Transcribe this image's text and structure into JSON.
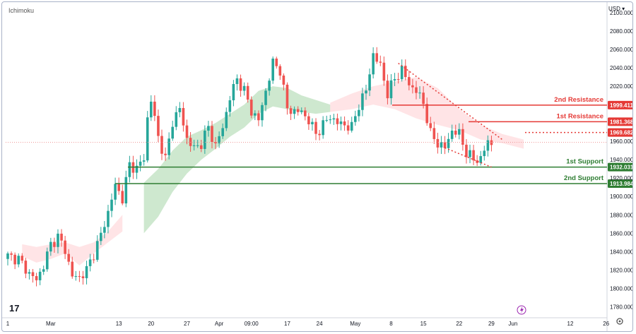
{
  "header": {
    "indicator": "Ichimoku",
    "currency": "USD ▾"
  },
  "watermark": "17",
  "icons": {
    "flash": "flash-icon",
    "settings": "gear-icon"
  },
  "colors": {
    "up": "#26a69a",
    "down": "#ef5350",
    "resistance": "#e53935",
    "support": "#2e7d32",
    "cloud_bull": "#a5d6a7",
    "cloud_bear": "#ffcdd2",
    "price_line": "#ef9a9a"
  },
  "chart_data": {
    "type": "candlestick",
    "ylim": [
      1768,
      2110
    ],
    "y_ticks": [
      {
        "value": 2100,
        "label": "2100.000"
      },
      {
        "value": 2080,
        "label": "2080.000"
      },
      {
        "value": 2060,
        "label": "2060.000"
      },
      {
        "value": 2040,
        "label": "2040.000"
      },
      {
        "value": 2020,
        "label": "2020.000"
      },
      {
        "value": 1960,
        "label": "1960.000"
      },
      {
        "value": 1940,
        "label": "1940.000"
      },
      {
        "value": 1920,
        "label": "1920.000"
      },
      {
        "value": 1900,
        "label": "1900.000"
      },
      {
        "value": 1880,
        "label": "1880.000"
      },
      {
        "value": 1860,
        "label": "1860.000"
      },
      {
        "value": 1840,
        "label": "1840.000"
      },
      {
        "value": 1820,
        "label": "1820.000"
      },
      {
        "value": 1800,
        "label": "1800.000"
      },
      {
        "value": 1780,
        "label": "1780.000"
      }
    ],
    "x_ticks": [
      {
        "pos": 0,
        "label": "1"
      },
      {
        "pos": 12,
        "label": "Mar"
      },
      {
        "pos": 31,
        "label": "13"
      },
      {
        "pos": 40,
        "label": "20"
      },
      {
        "pos": 50,
        "label": "27"
      },
      {
        "pos": 59,
        "label": "Apr"
      },
      {
        "pos": 68,
        "label": "09:00"
      },
      {
        "pos": 78,
        "label": "17"
      },
      {
        "pos": 87,
        "label": "24"
      },
      {
        "pos": 97,
        "label": "May"
      },
      {
        "pos": 107,
        "label": "8"
      },
      {
        "pos": 116,
        "label": "15"
      },
      {
        "pos": 126,
        "label": "22"
      },
      {
        "pos": 135,
        "label": "29"
      },
      {
        "pos": 141,
        "label": "Jun"
      },
      {
        "pos": 157,
        "label": "12"
      },
      {
        "pos": 167,
        "label": "26"
      }
    ],
    "ohlc_anchors": [
      [
        0,
        1835
      ],
      [
        3,
        1832
      ],
      [
        6,
        1816
      ],
      [
        8,
        1809
      ],
      [
        10,
        1825
      ],
      [
        12,
        1848
      ],
      [
        14,
        1856
      ],
      [
        16,
        1842
      ],
      [
        18,
        1813
      ],
      [
        20,
        1812
      ],
      [
        22,
        1820
      ],
      [
        24,
        1838
      ],
      [
        26,
        1858
      ],
      [
        28,
        1883
      ],
      [
        30,
        1912
      ],
      [
        32,
        1898
      ],
      [
        34,
        1935
      ],
      [
        36,
        1930
      ],
      [
        38,
        1942
      ],
      [
        39,
        1985
      ],
      [
        40,
        2005
      ],
      [
        42,
        1965
      ],
      [
        44,
        1940
      ],
      [
        46,
        1982
      ],
      [
        48,
        1995
      ],
      [
        50,
        1963
      ],
      [
        52,
        1952
      ],
      [
        54,
        1958
      ],
      [
        56,
        1975
      ],
      [
        58,
        1955
      ],
      [
        60,
        1975
      ],
      [
        62,
        2008
      ],
      [
        64,
        2028
      ],
      [
        66,
        2015
      ],
      [
        68,
        1993
      ],
      [
        70,
        1983
      ],
      [
        72,
        2015
      ],
      [
        74,
        2045
      ],
      [
        76,
        2038
      ],
      [
        78,
        1995
      ],
      [
        80,
        1993
      ],
      [
        82,
        1992
      ],
      [
        84,
        1983
      ],
      [
        86,
        1968
      ],
      [
        88,
        1978
      ],
      [
        90,
        1987
      ],
      [
        92,
        1980
      ],
      [
        94,
        1978
      ],
      [
        96,
        1975
      ],
      [
        98,
        2000
      ],
      [
        100,
        2015
      ],
      [
        102,
        2055
      ],
      [
        104,
        2042
      ],
      [
        106,
        2012
      ],
      [
        108,
        2028
      ],
      [
        110,
        2038
      ],
      [
        112,
        2022
      ],
      [
        114,
        2015
      ],
      [
        116,
        2002
      ],
      [
        118,
        1968
      ],
      [
        120,
        1958
      ],
      [
        122,
        1953
      ],
      [
        124,
        1972
      ],
      [
        126,
        1968
      ],
      [
        128,
        1948
      ],
      [
        130,
        1940
      ],
      [
        132,
        1941
      ],
      [
        134,
        1960
      ],
      [
        135,
        1957
      ]
    ],
    "levels": [
      {
        "name": "2nd Resistance",
        "value": 1999.411,
        "tag": "1999.411",
        "type": "resistance",
        "style": "solid"
      },
      {
        "name": "1st Resistance",
        "value": 1981.368,
        "tag": "1981.368",
        "type": "resistance",
        "style": "solid"
      },
      {
        "name": "",
        "value": 1969.682,
        "tag": "1969.682",
        "type": "resistance",
        "style": "dotted"
      },
      {
        "name": "1st Support",
        "value": 1932.031,
        "tag": "1932.031",
        "type": "support",
        "style": "solid"
      },
      {
        "name": "2nd Support",
        "value": 1913.984,
        "tag": "1913.984",
        "type": "support",
        "style": "solid"
      }
    ],
    "current_price": 1959,
    "channel": {
      "upper": [
        [
          109,
          2045
        ],
        [
          138,
          1962
        ]
      ],
      "lower": [
        [
          122,
          1953
        ],
        [
          135,
          1932
        ]
      ]
    },
    "cloud": {
      "bull": [
        [
          38,
          1860,
          1915
        ],
        [
          42,
          1878,
          1930
        ],
        [
          46,
          1905,
          1950
        ],
        [
          50,
          1925,
          1965
        ],
        [
          54,
          1940,
          1972
        ],
        [
          58,
          1952,
          1980
        ],
        [
          62,
          1965,
          1990
        ],
        [
          66,
          1975,
          2000
        ],
        [
          70,
          1990,
          2015
        ],
        [
          74,
          1998,
          2020
        ],
        [
          78,
          1995,
          2018
        ],
        [
          82,
          1992,
          2010
        ],
        [
          86,
          1990,
          2005
        ],
        [
          90,
          1992,
          2000
        ]
      ],
      "bear": [
        [
          4,
          1835,
          1848
        ],
        [
          8,
          1828,
          1845
        ],
        [
          12,
          1832,
          1848
        ],
        [
          16,
          1838,
          1850
        ],
        [
          20,
          1825,
          1845
        ],
        [
          24,
          1838,
          1850
        ],
        [
          28,
          1850,
          1862
        ],
        [
          32,
          1862,
          1880
        ],
        [
          90,
          1992,
          2002
        ],
        [
          96,
          1995,
          2012
        ],
        [
          102,
          2000,
          2020
        ],
        [
          108,
          1995,
          2025
        ],
        [
          114,
          1985,
          2030
        ],
        [
          120,
          1978,
          2018
        ],
        [
          126,
          1972,
          1995
        ],
        [
          132,
          1962,
          1978
        ],
        [
          138,
          1958,
          1968
        ],
        [
          144,
          1952,
          1962
        ]
      ]
    }
  }
}
